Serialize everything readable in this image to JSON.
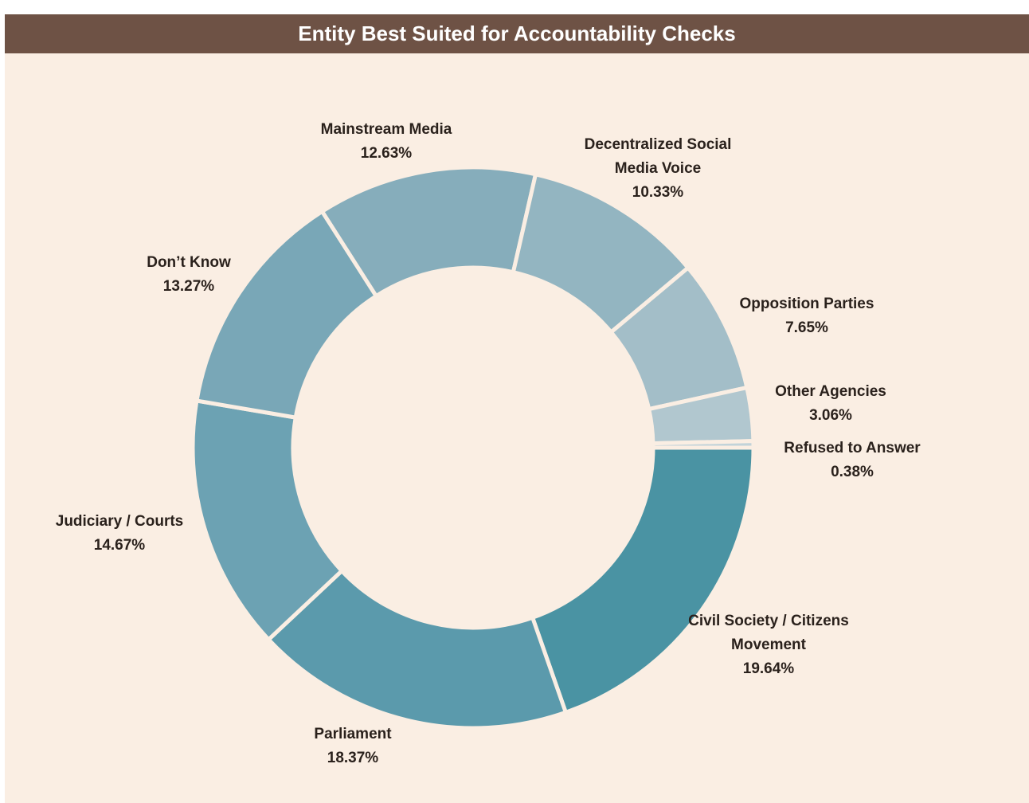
{
  "chart_data": {
    "type": "donut",
    "title": "Entity Best Suited for Accountability Checks",
    "categories": [
      "Civil Society / Citizens Movement",
      "Parliament",
      "Judiciary / Courts",
      "Don’t Know",
      "Mainstream Media",
      "Decentralized Social Media Voice",
      "Opposition Parties",
      "Other Agencies",
      "Refused to Answer"
    ],
    "values": [
      19.64,
      18.37,
      14.67,
      13.27,
      12.63,
      10.33,
      7.65,
      3.06,
      0.38
    ],
    "value_labels": [
      "19.64%",
      "18.37%",
      "14.67%",
      "13.27%",
      "12.63%",
      "10.33%",
      "7.65%",
      "3.06%",
      "0.38%"
    ],
    "colors": [
      "#4a93a3",
      "#5b9aac",
      "#6ca2b3",
      "#79a7b7",
      "#86adbb",
      "#93b5c1",
      "#a3bec8",
      "#b1c7cf",
      "#c2d3d9"
    ]
  }
}
